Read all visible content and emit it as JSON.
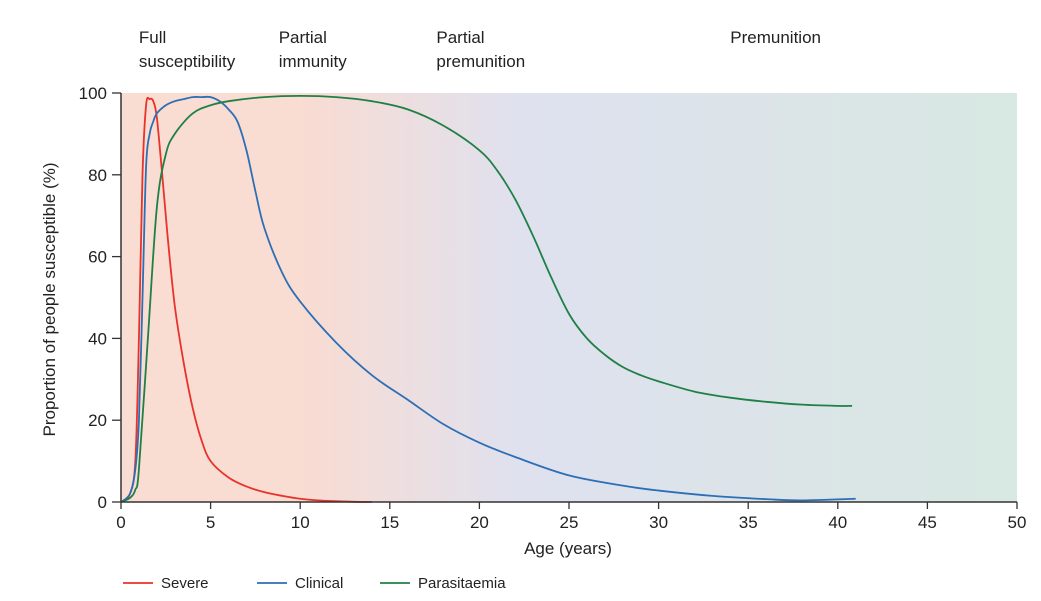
{
  "chart_data": {
    "type": "line",
    "xlabel": "Age (years)",
    "ylabel": "Proportion of people susceptible (%)",
    "xlim": [
      0,
      50
    ],
    "ylim": [
      0,
      100
    ],
    "x_ticks": [
      "0",
      "5",
      "10",
      "15",
      "20",
      "25",
      "30",
      "35",
      "40",
      "45",
      "50"
    ],
    "y_ticks": [
      "0",
      "20",
      "40",
      "60",
      "80",
      "100"
    ],
    "phases": [
      {
        "line1": "Full",
        "line2": "susceptibility",
        "x": 1
      },
      {
        "line1": "Partial",
        "line2": "immunity",
        "x": 8.8
      },
      {
        "line1": "Partial",
        "line2": "premunition",
        "x": 17.6
      },
      {
        "line1": "Premunition",
        "line2": "",
        "x": 34
      }
    ],
    "background_gradient": {
      "colors": [
        "#f9dcd2",
        "#dfe1ef",
        "#d8e8e2"
      ],
      "span": [
        0,
        50
      ]
    },
    "series": [
      {
        "name": "Severe",
        "color": "#e8332a",
        "x": [
          0,
          0.5,
          0.8,
          1.0,
          1.2,
          1.4,
          1.6,
          1.8,
          2.0,
          2.3,
          2.6,
          3.0,
          3.5,
          4.0,
          4.5,
          5.0,
          6.0,
          7.0,
          8.0,
          9.0,
          10.0,
          11.0,
          12.0,
          13.0,
          14.0
        ],
        "y": [
          0,
          2,
          10,
          40,
          80,
          97,
          98.5,
          98,
          94,
          80,
          65,
          48,
          34,
          23,
          15,
          10,
          6,
          3.8,
          2.4,
          1.5,
          0.8,
          0.4,
          0.2,
          0.05,
          0
        ]
      },
      {
        "name": "Clinical",
        "color": "#2c6fb6",
        "x": [
          0,
          0.5,
          0.8,
          1.0,
          1.2,
          1.4,
          1.6,
          1.8,
          2.0,
          2.5,
          3.0,
          3.5,
          4.0,
          4.5,
          5.0,
          5.5,
          6.0,
          6.5,
          7.0,
          7.5,
          8.0,
          9.0,
          10.0,
          12.0,
          14.0,
          16.0,
          18.0,
          20.0,
          22.0,
          25.0,
          28.0,
          30.0,
          33.0,
          36.0,
          38.0,
          41.0
        ],
        "y": [
          0,
          2,
          8,
          20,
          50,
          82,
          90,
          93,
          95,
          97,
          98,
          98.5,
          99,
          99,
          99,
          98,
          96,
          93,
          86,
          76,
          67,
          56,
          49,
          39,
          31,
          25,
          19,
          14.5,
          11,
          6.5,
          4,
          2.8,
          1.5,
          0.7,
          0.4,
          0.8
        ]
      },
      {
        "name": "Parasitaemia",
        "color": "#1f8045",
        "x": [
          0,
          0.5,
          0.8,
          1.0,
          1.5,
          2.0,
          2.5,
          3.0,
          4.0,
          5.0,
          6.0,
          8.0,
          10.0,
          12.0,
          14.0,
          16.0,
          18.0,
          20.0,
          21.0,
          22.0,
          23.0,
          24.0,
          25.0,
          26.0,
          27.0,
          28.0,
          29.0,
          30.0,
          32.0,
          34.0,
          36.0,
          38.0,
          40.0,
          40.8
        ],
        "y": [
          0,
          1,
          3,
          8,
          40,
          72,
          85,
          90,
          95,
          97,
          98,
          99,
          99.3,
          99,
          98,
          96,
          92,
          86,
          81,
          74,
          65,
          55,
          46,
          40,
          36,
          33,
          31,
          29.5,
          27,
          25.5,
          24.5,
          23.8,
          23.5,
          23.5
        ]
      }
    ],
    "legend_position": "bottom-left"
  }
}
